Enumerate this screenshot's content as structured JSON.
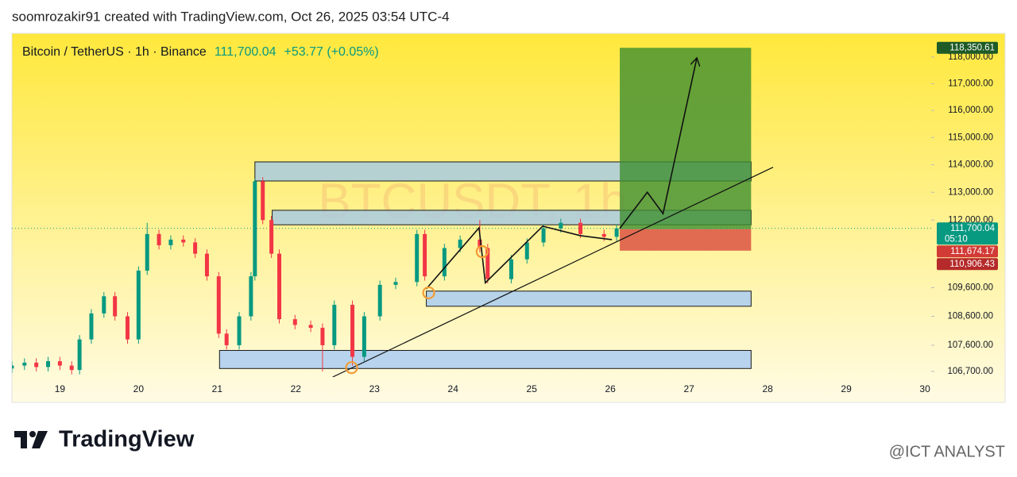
{
  "header": {
    "credit": "soomrozakir91 created with TradingView.com, Oct 26, 2025 03:54 UTC-4"
  },
  "legend": {
    "symbol": "Bitcoin / TetherUS · 1h · Binance",
    "price": "111,700.04",
    "change": "+53.77 (+0.05%)"
  },
  "footer": {
    "brand": "TradingView",
    "watermark": "@ICT ANALYST"
  },
  "chart_data": {
    "type": "candlestick",
    "watermark": "BTCUSDT, 1h",
    "up_color": "#089981",
    "down_color": "#f23645",
    "log": true,
    "xlim": [
      18.39,
      30.08
    ],
    "xticks": [
      19,
      20,
      21,
      22,
      23,
      24,
      25,
      26,
      27,
      28,
      29,
      30
    ],
    "ylim": [
      106510,
      118900
    ],
    "yticks": [
      {
        "value": 106700,
        "label": "106,700.00"
      },
      {
        "value": 107600,
        "label": "107,600.00"
      },
      {
        "value": 108600,
        "label": "108,600.00"
      },
      {
        "value": 109600,
        "label": "109,600.00"
      },
      {
        "value": 112000,
        "label": "112,000.00"
      },
      {
        "value": 113000,
        "label": "113,000.00"
      },
      {
        "value": 114000,
        "label": "114,000.00"
      },
      {
        "value": 115000,
        "label": "115,000.00"
      },
      {
        "value": 116000,
        "label": "116,000.00"
      },
      {
        "value": 117000,
        "label": "117,000.00"
      },
      {
        "value": 118000,
        "label": "118,000.00"
      }
    ],
    "x": [
      18.39,
      18.55,
      18.7,
      18.85,
      19.0,
      19.15,
      19.25,
      19.4,
      19.56,
      19.7,
      19.86,
      20.0,
      20.11,
      20.26,
      20.41,
      20.57,
      20.72,
      20.87,
      21.02,
      21.12,
      21.28,
      21.43,
      21.48,
      21.58,
      21.69,
      21.79,
      21.99,
      22.19,
      22.34,
      22.49,
      22.72,
      22.87,
      23.07,
      23.27,
      23.54,
      23.64,
      23.89,
      24.09,
      24.34,
      24.44,
      24.74,
      24.94,
      25.15,
      25.37,
      25.62,
      25.92,
      26.08
    ],
    "open": [
      106800,
      106900,
      107000,
      106850,
      107050,
      106900,
      106750,
      107800,
      108700,
      109300,
      108600,
      107800,
      110200,
      111500,
      111100,
      111300,
      111200,
      110800,
      110000,
      108000,
      107600,
      108600,
      110000,
      113400,
      112000,
      110800,
      108500,
      108300,
      108200,
      107600,
      109000,
      107200,
      108600,
      109700,
      109800,
      111500,
      110000,
      111000,
      111300,
      111000,
      109900,
      110600,
      111200,
      111700,
      111900,
      111500,
      111400
    ],
    "high": [
      107050,
      107150,
      107150,
      107200,
      107200,
      107050,
      107950,
      108850,
      109450,
      109450,
      108750,
      110350,
      111900,
      111650,
      111450,
      111450,
      111350,
      110950,
      110150,
      108150,
      108750,
      110150,
      113500,
      113550,
      112150,
      110950,
      108650,
      108450,
      108350,
      109150,
      109150,
      108750,
      109850,
      109950,
      111650,
      111650,
      111150,
      111450,
      112000,
      111150,
      110750,
      111350,
      111850,
      112050,
      112050,
      111650,
      111850
    ],
    "low": [
      106650,
      106750,
      106700,
      106700,
      106750,
      106600,
      106600,
      107650,
      108550,
      108450,
      107650,
      107650,
      110050,
      110950,
      110950,
      111050,
      110650,
      109850,
      107850,
      107450,
      107450,
      108450,
      109850,
      111850,
      110650,
      108350,
      108150,
      108050,
      106700,
      107450,
      106900,
      107050,
      108450,
      109550,
      109650,
      109850,
      109850,
      110850,
      110850,
      109750,
      109750,
      110450,
      111050,
      111550,
      111350,
      111250,
      111250
    ],
    "close": [
      106900,
      107000,
      106850,
      107050,
      106900,
      106750,
      107800,
      108700,
      109300,
      108600,
      107800,
      110200,
      111500,
      111100,
      111300,
      111200,
      110800,
      110000,
      108000,
      107600,
      108600,
      110000,
      113400,
      112000,
      110800,
      108500,
      108300,
      108200,
      107600,
      109000,
      107200,
      108600,
      109700,
      109800,
      111500,
      110000,
      111000,
      111300,
      111000,
      109900,
      110600,
      111200,
      111700,
      111900,
      111500,
      111400,
      111700
    ],
    "last_price": {
      "value": 111700.04,
      "label": "111,700.04"
    },
    "countdown": "05:10",
    "zones": [
      {
        "x": [
          21.48,
          27.79
        ],
        "y": [
          113410,
          114105
        ],
        "color": "#a9cbe0"
      },
      {
        "x": [
          21.7,
          27.79
        ],
        "y": [
          111830,
          112350
        ],
        "color": "#a9cbe0"
      },
      {
        "x": [
          23.66,
          27.79
        ],
        "y": [
          108950,
          109480
        ],
        "color": "#aacdf2"
      },
      {
        "x": [
          21.03,
          27.79
        ],
        "y": [
          106800,
          107420
        ],
        "color": "#aacdf2"
      }
    ],
    "position": {
      "x": [
        26.12,
        27.79
      ],
      "target": {
        "value": 118350.61,
        "label": "118,350.61"
      },
      "entry": {
        "value": 111674.17,
        "label": "111,674.17"
      },
      "stop": {
        "value": 110906.43,
        "label": "110,906.43"
      },
      "profit_color": "#3f8f2f",
      "loss_color": "#d9483f"
    },
    "trend_line": {
      "x": [
        22.47,
        28.07
      ],
      "y": [
        106510,
        113910
      ]
    },
    "arrow": {
      "x": [
        26.12,
        26.47,
        26.67,
        27.1
      ],
      "y": [
        111700,
        113000,
        112230,
        117970
      ]
    },
    "zigzag": {
      "x": [
        23.66,
        24.33,
        24.41,
        25.14,
        25.62,
        26.02
      ],
      "y": [
        109560,
        111720,
        109770,
        111780,
        111440,
        111300
      ]
    },
    "markers": {
      "x": [
        23.69,
        24.37,
        22.71
      ],
      "y": [
        109420,
        110870,
        106830
      ],
      "color": "#f39c34"
    }
  }
}
